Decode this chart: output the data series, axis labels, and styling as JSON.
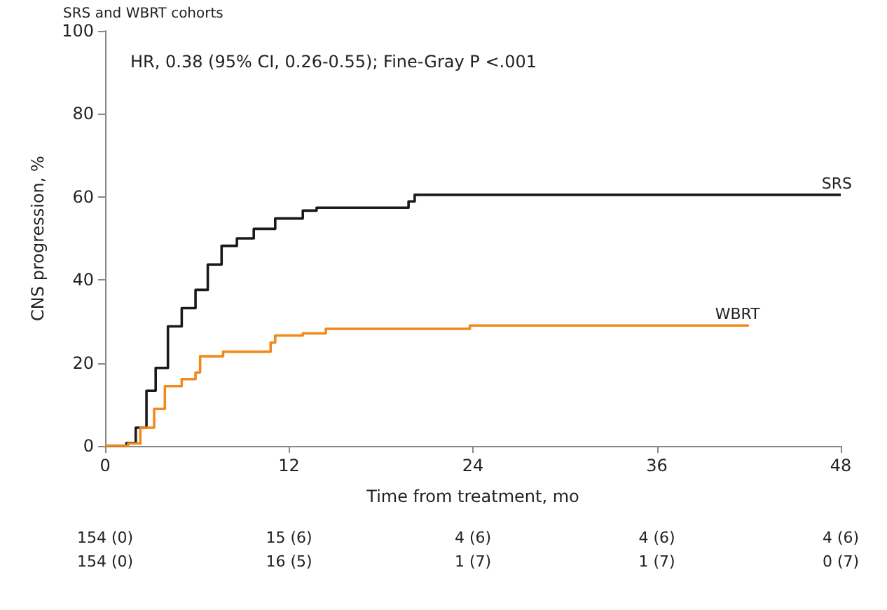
{
  "chart_data": {
    "type": "step",
    "title": "SRS and WBRT cohorts",
    "xlabel": "Time from treatment, mo",
    "ylabel": "CNS progression, %",
    "series": [
      {
        "name": "SRS",
        "color": "#1a1a1a",
        "x": [
          0,
          1.4,
          2.0,
          2.7,
          3.3,
          4.1,
          5.0,
          5.9,
          6.7,
          7.6,
          8.6,
          9.7,
          11.1,
          12.9,
          13.8,
          17.4,
          19.8,
          20.2,
          48
        ],
        "values": [
          0,
          0.7,
          4.4,
          13.3,
          18.8,
          28.8,
          33.2,
          37.6,
          43.7,
          48.2,
          50.0,
          52.3,
          54.8,
          56.7,
          57.4,
          57.4,
          58.9,
          60.5,
          60.5
        ]
      },
      {
        "name": "WBRT",
        "color": "#f08a1c",
        "x": [
          0,
          1.5,
          2.3,
          3.2,
          3.9,
          5.0,
          5.9,
          6.2,
          7.7,
          10.8,
          11.1,
          12.9,
          14.4,
          22.9,
          23.8,
          42
        ],
        "values": [
          0,
          0.6,
          4.4,
          8.9,
          14.4,
          16.1,
          17.7,
          21.6,
          22.7,
          24.9,
          26.6,
          27.1,
          28.2,
          28.2,
          29.0,
          29.0
        ]
      }
    ],
    "xlim": [
      0,
      48
    ],
    "xticks": [
      0,
      12,
      24,
      36,
      48
    ],
    "ylim": [
      0,
      100
    ],
    "yticks": [
      0,
      20,
      40,
      60,
      80,
      100
    ],
    "grid": false,
    "legend": false,
    "marker": "none",
    "line_style": "solid",
    "annotations": [
      "HR, 0.38 (95% CI, 0.26-0.55); Fine-Gray P <.001",
      "154 (0)",
      "15 (6)",
      "4 (6)",
      "4 (6)",
      "4 (6)",
      "154 (0)",
      "16 (5)",
      "1 (7)",
      "1 (7)",
      "0 (7)"
    ]
  }
}
